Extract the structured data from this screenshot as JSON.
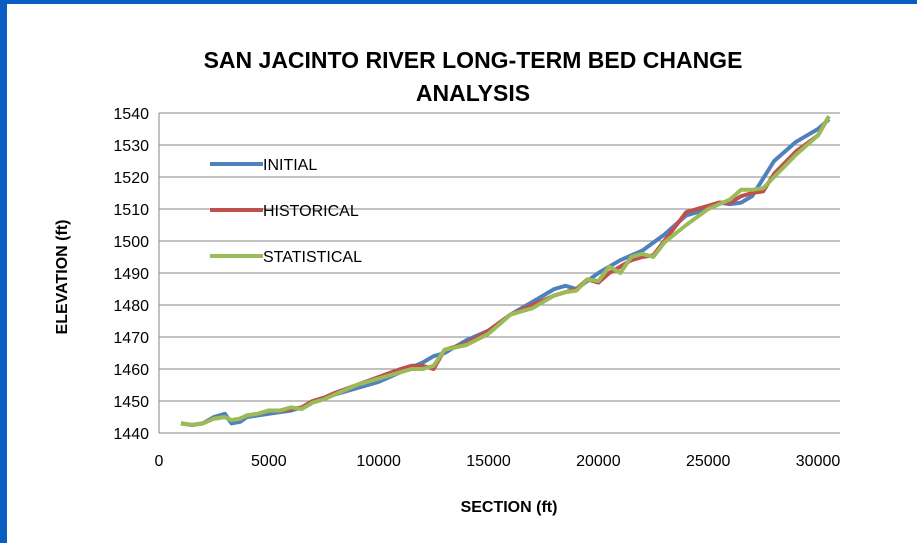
{
  "chart_data": {
    "type": "line",
    "title_line1": "SAN JACINTO RIVER LONG-TERM  BED CHANGE",
    "title_line2": "ANALYSIS",
    "xlabel": "SECTION (ft)",
    "ylabel": "ELEVATION (ft)",
    "xlim": [
      0,
      30000
    ],
    "ylim": [
      1440,
      1540
    ],
    "xticks": [
      0,
      5000,
      10000,
      15000,
      20000,
      25000,
      30000
    ],
    "yticks": [
      1440,
      1450,
      1460,
      1470,
      1480,
      1490,
      1500,
      1510,
      1520,
      1530,
      1540
    ],
    "grid": "horizontal",
    "legend_position": "upper-left",
    "series": [
      {
        "name": "INITIAL",
        "color": "#4f81bd",
        "x": [
          1000,
          1500,
          2000,
          2500,
          3000,
          3300,
          3700,
          4000,
          4500,
          5000,
          5500,
          6000,
          6500,
          7000,
          7500,
          8000,
          9000,
          10000,
          11000,
          12000,
          12500,
          13000,
          14000,
          15000,
          16000,
          17000,
          18000,
          18500,
          19000,
          20000,
          20500,
          21000,
          22000,
          23000,
          24000,
          25000,
          25500,
          26000,
          26500,
          27000,
          28000,
          29000,
          30000,
          30500
        ],
        "y": [
          1443,
          1442.5,
          1443,
          1445,
          1446,
          1443,
          1443.5,
          1445,
          1445.5,
          1446,
          1446.5,
          1447,
          1448,
          1450,
          1451,
          1452,
          1454,
          1456,
          1459,
          1462,
          1464,
          1465,
          1469,
          1472,
          1477,
          1481,
          1485,
          1486,
          1485,
          1490,
          1492,
          1494,
          1497,
          1502,
          1508,
          1510,
          1512,
          1511.5,
          1512,
          1514,
          1525,
          1531,
          1535,
          1538
        ]
      },
      {
        "name": "HISTORICAL",
        "color": "#c0504d",
        "x": [
          1000,
          1500,
          2000,
          2500,
          3000,
          3300,
          3700,
          4000,
          4500,
          5000,
          5500,
          6000,
          6500,
          7000,
          7500,
          8000,
          9000,
          10000,
          11000,
          11500,
          12000,
          12500,
          13000,
          14000,
          15000,
          16000,
          17000,
          18000,
          18500,
          19000,
          19500,
          20000,
          20500,
          21000,
          21500,
          22000,
          22500,
          23000,
          24000,
          25000,
          25500,
          26000,
          26500,
          27000,
          27500,
          28000,
          29000,
          30000,
          30500
        ],
        "y": [
          1443,
          1442.5,
          1443,
          1444.5,
          1445,
          1444,
          1444.5,
          1445.5,
          1446,
          1447,
          1447,
          1447.5,
          1448,
          1450,
          1451,
          1452.5,
          1455,
          1457.5,
          1460,
          1461,
          1461,
          1460,
          1466,
          1468,
          1472,
          1477,
          1480,
          1483,
          1484,
          1485,
          1488,
          1487,
          1490,
          1492,
          1494,
          1495,
          1495.5,
          1500,
          1509,
          1511,
          1512,
          1512,
          1514,
          1515,
          1515.5,
          1521,
          1528,
          1533,
          1539
        ]
      },
      {
        "name": "STATISTICAL",
        "color": "#9bbb59",
        "x": [
          1000,
          1500,
          2000,
          2500,
          3000,
          3300,
          3700,
          4000,
          4500,
          5000,
          5500,
          6000,
          6500,
          7000,
          7500,
          8000,
          9000,
          10000,
          11000,
          11500,
          12000,
          12500,
          13000,
          14000,
          15000,
          16000,
          17000,
          18000,
          18500,
          19000,
          19500,
          20000,
          20500,
          21000,
          21500,
          22000,
          22500,
          23000,
          24000,
          25000,
          25500,
          26000,
          26500,
          27000,
          27500,
          28000,
          29000,
          30000,
          30500
        ],
        "y": [
          1443,
          1442.5,
          1443,
          1444.5,
          1445,
          1444,
          1444.5,
          1445.5,
          1446,
          1447,
          1447,
          1448,
          1447.5,
          1449.5,
          1450.5,
          1452,
          1455,
          1457,
          1459,
          1460,
          1460,
          1461,
          1466,
          1467.5,
          1471,
          1477,
          1479,
          1483,
          1484,
          1484.5,
          1488,
          1487.5,
          1492,
          1490,
          1495,
          1496,
          1495,
          1499.5,
          1505,
          1510,
          1511.5,
          1513,
          1516,
          1516,
          1516.5,
          1520,
          1527,
          1533,
          1539
        ]
      }
    ]
  }
}
